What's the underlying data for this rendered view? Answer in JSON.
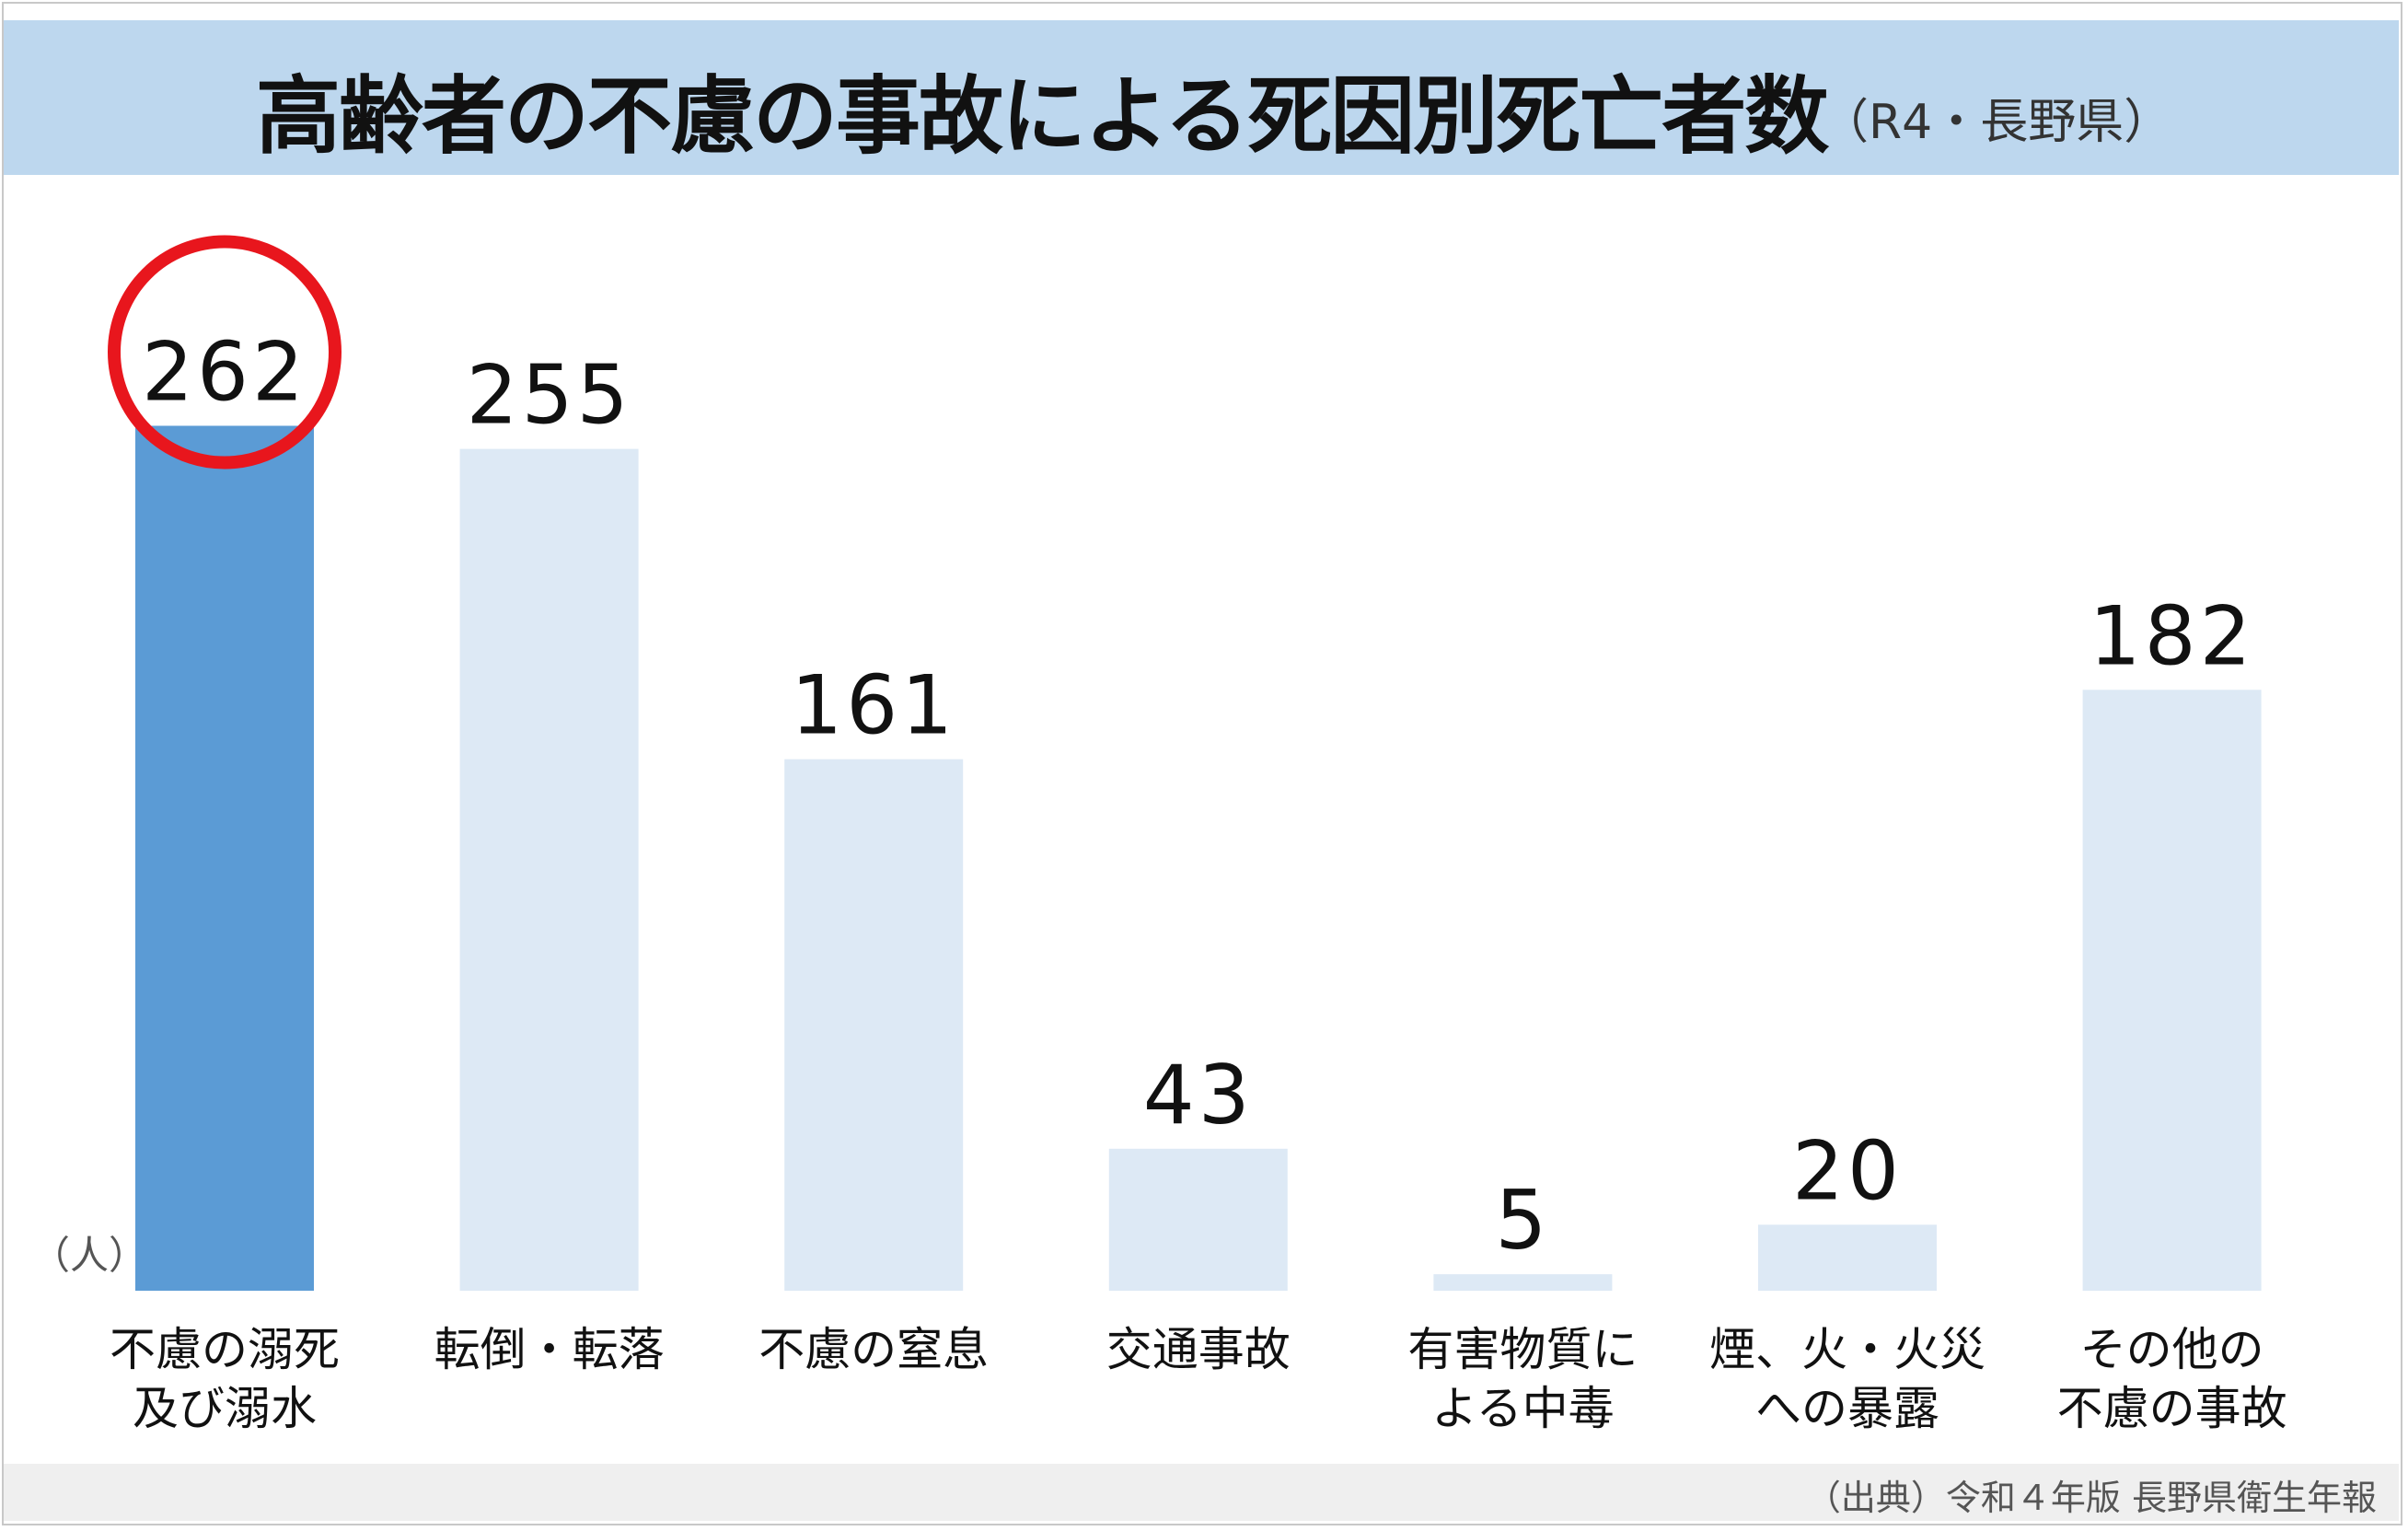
{
  "title": "高齢者の不慮の事故による死因別死亡者数",
  "subtitle": "（R4・長野県）",
  "unit_label": "（人）",
  "source": "（出典）令和４年版 長野県衛生年報",
  "colors": {
    "header_bg": "#bdd7ee",
    "highlight_bar": "#5b9bd5",
    "bar": "#dde9f5",
    "highlight_ring": "#e8161d"
  },
  "chart_data": {
    "type": "bar",
    "title": "高齢者の不慮の事故による死因別死亡者数",
    "subtitle": "（R4・長野県）",
    "ylabel": "（人）",
    "ylim": [
      0,
      300
    ],
    "grid": false,
    "categories": [
      [
        "不慮の溺死",
        "及び溺水"
      ],
      [
        "転倒・転落"
      ],
      [
        "不慮の窒息"
      ],
      [
        "交通事故"
      ],
      [
        "有害物質に",
        "よる中毒"
      ],
      [
        "煙、火・火災",
        "への暴露"
      ],
      [
        "その他の",
        "不慮の事故"
      ]
    ],
    "values": [
      262,
      255,
      161,
      43,
      5,
      20,
      182
    ],
    "highlight_index": 0
  }
}
